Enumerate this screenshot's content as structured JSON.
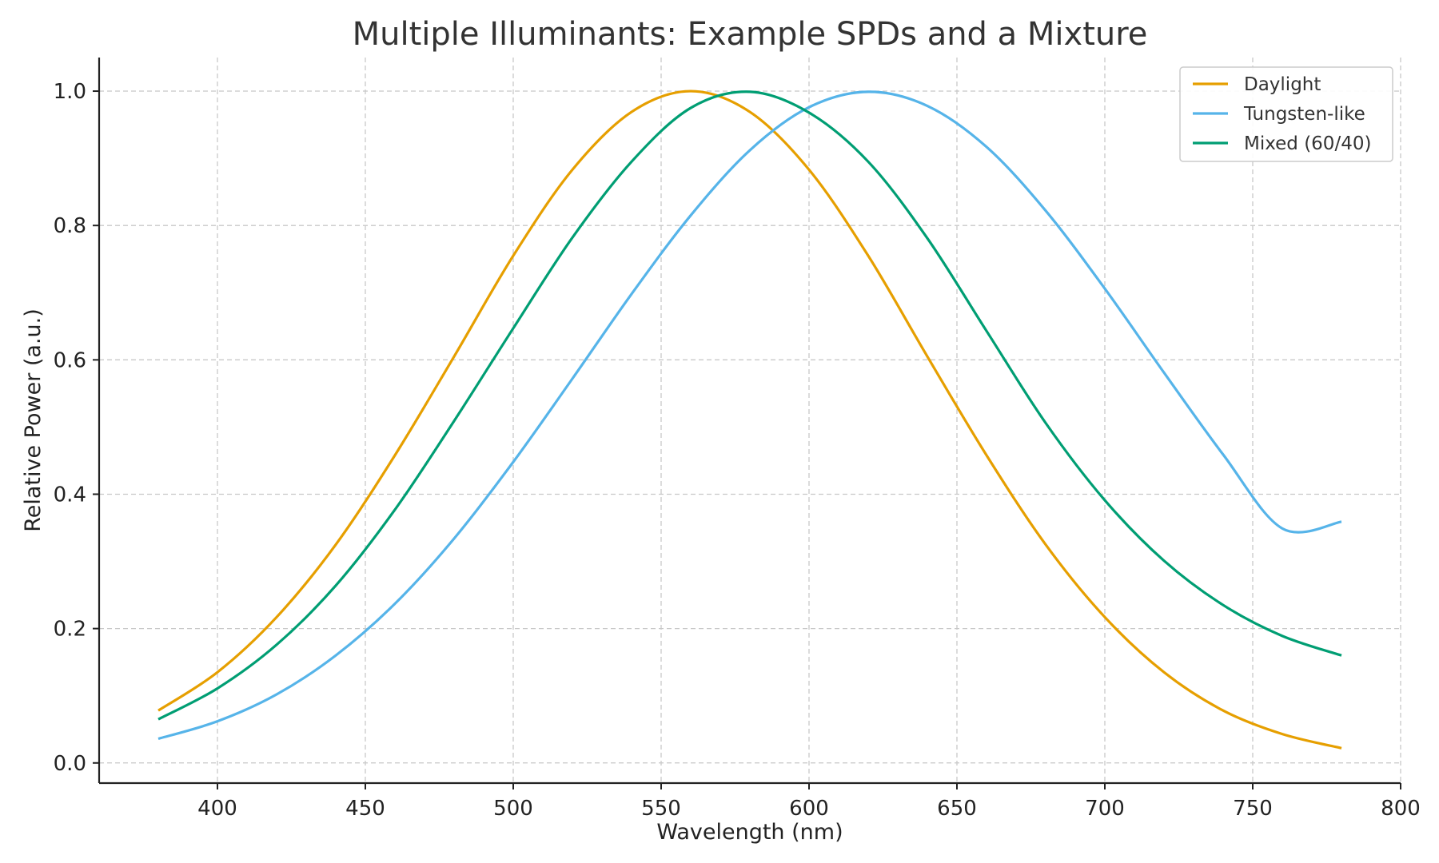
{
  "chart_data": {
    "type": "line",
    "title": "Multiple Illuminants: Example SPDs and a Mixture",
    "xlabel": "Wavelength (nm)",
    "ylabel": "Relative Power (a.u.)",
    "xlim": [
      360,
      800
    ],
    "ylim": [
      -0.03,
      1.05
    ],
    "xticks": [
      400,
      450,
      500,
      550,
      600,
      650,
      700,
      750,
      800
    ],
    "xtick_labels": [
      "400",
      "450",
      "500",
      "550",
      "600",
      "650",
      "700",
      "750",
      "800"
    ],
    "yticks": [
      0.0,
      0.2,
      0.4,
      0.6,
      0.8,
      1.0
    ],
    "ytick_labels": [
      "0.0",
      "0.2",
      "0.4",
      "0.6",
      "0.8",
      "1.0"
    ],
    "grid": true,
    "legend_position": "top-right",
    "x": [
      380,
      400,
      420,
      440,
      460,
      480,
      500,
      520,
      540,
      560,
      580,
      600,
      620,
      640,
      660,
      680,
      700,
      720,
      740,
      760,
      780
    ],
    "series": [
      {
        "name": "Daylight",
        "color": "#E69F00",
        "values": [
          0.078,
          0.135,
          0.217,
          0.325,
          0.458,
          0.605,
          0.755,
          0.883,
          0.969,
          1.0,
          0.969,
          0.883,
          0.755,
          0.605,
          0.458,
          0.325,
          0.217,
          0.135,
          0.078,
          0.043,
          0.022
        ]
      },
      {
        "name": "Tungsten-like",
        "color": "#56B4E9",
        "values": [
          0.036,
          0.062,
          0.102,
          0.16,
          0.237,
          0.334,
          0.448,
          0.572,
          0.698,
          0.815,
          0.912,
          0.976,
          0.999,
          0.978,
          0.917,
          0.822,
          0.706,
          0.581,
          0.459,
          0.349,
          0.359
        ]
      },
      {
        "name": "Mixed (60/40)",
        "color": "#009E73",
        "values": [
          0.065,
          0.111,
          0.176,
          0.264,
          0.377,
          0.509,
          0.647,
          0.782,
          0.895,
          0.975,
          0.999,
          0.968,
          0.895,
          0.781,
          0.643,
          0.506,
          0.391,
          0.301,
          0.235,
          0.189,
          0.16
        ]
      }
    ]
  }
}
